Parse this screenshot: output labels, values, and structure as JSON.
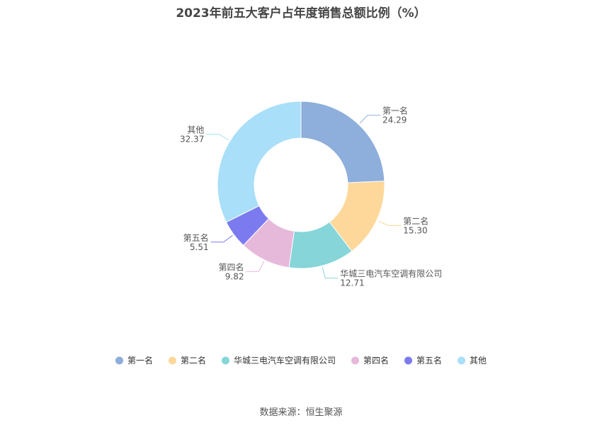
{
  "chart_data": {
    "type": "pie",
    "style": "donut",
    "title": "2023年前五大客户占年度销售总额比例（%）",
    "categories": [
      "第一名",
      "第二名",
      "华城三电汽车空调有限公司",
      "第四名",
      "第五名",
      "其他"
    ],
    "values": [
      24.29,
      15.3,
      12.71,
      9.82,
      5.51,
      32.37
    ],
    "value_labels": [
      "24.29",
      "15.30",
      "12.71",
      "9.82",
      "5.51",
      "32.37"
    ],
    "colors": [
      "#8eaedb",
      "#fdd89a",
      "#86d5d8",
      "#e6b9da",
      "#7b7bef",
      "#a9dff8"
    ],
    "legend_position": "bottom",
    "source": "数据来源：恒生聚源"
  }
}
